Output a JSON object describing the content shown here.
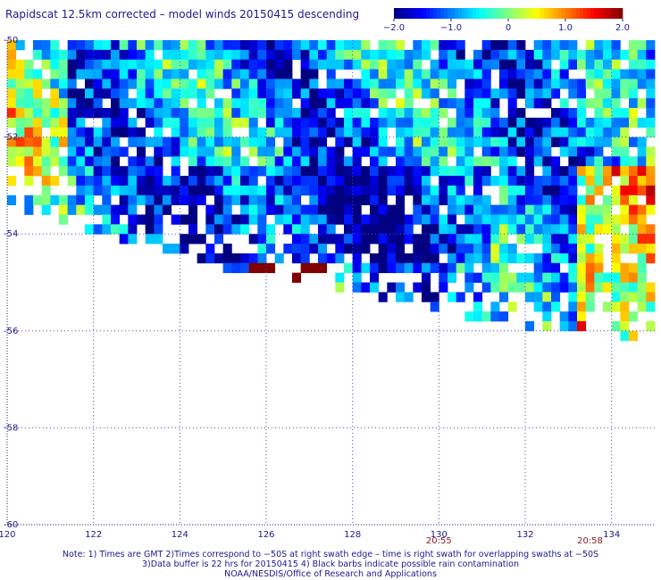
{
  "title": "Rapidscat 12.5km corrected – model winds 20150415 descending",
  "colorbar": {
    "ticks": [
      "−2.0",
      "−1.0",
      "0",
      "1.0",
      "2.0"
    ],
    "values": [
      -2.0,
      -1.0,
      0,
      1.0,
      2.0
    ]
  },
  "chart_data": {
    "type": "heatmap",
    "title": "Rapidscat 12.5km corrected – model winds 20150415 descending",
    "xlabel": "",
    "ylabel": "",
    "xlim": [
      120,
      135
    ],
    "ylim": [
      -60,
      -50
    ],
    "x_ticks": [
      120,
      122,
      124,
      126,
      128,
      130,
      132,
      134
    ],
    "y_ticks": [
      -50,
      -52,
      -54,
      -56,
      -58,
      -60
    ],
    "value_range": [
      -2.0,
      2.0
    ],
    "grid": true,
    "time_labels": [
      {
        "x": 130,
        "label": "20:55"
      },
      {
        "x": 133.5,
        "label": "20:58"
      }
    ],
    "swath_southern_edge": [
      [
        120,
        -53.2
      ],
      [
        121,
        -53.7
      ],
      [
        122,
        -53.9
      ],
      [
        123,
        -54.1
      ],
      [
        124,
        -54.3
      ],
      [
        125,
        -54.6
      ],
      [
        126,
        -54.8
      ],
      [
        127,
        -54.9
      ],
      [
        128,
        -55.1
      ],
      [
        129,
        -55.3
      ],
      [
        130,
        -55.5
      ],
      [
        131,
        -55.7
      ],
      [
        132,
        -55.8
      ],
      [
        133,
        -55.9
      ],
      [
        134,
        -56.0
      ],
      [
        135,
        -56.1
      ]
    ]
  },
  "footer": {
    "line1": "Note: 1) Times are GMT 2)Times correspond to −50S at right swath edge – time is right swath for overlapping swaths at −50S",
    "line2": "3)Data buffer is 22 hrs for 20150415 4) Black barbs indicate possible rain contamination",
    "line3": "NOAA/NESDIS/Office of Research and Applications"
  }
}
